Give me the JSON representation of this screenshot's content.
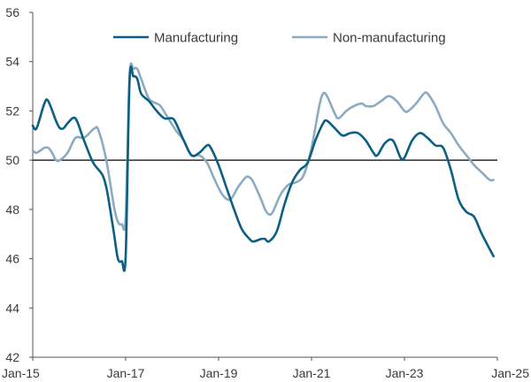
{
  "chart_data": {
    "type": "line",
    "title": "",
    "xlabel": "",
    "ylabel": "",
    "x_ticks": [
      "Jan-15",
      "Jan-17",
      "Jan-19",
      "Jan-21",
      "Jan-23",
      "Jan-25"
    ],
    "y_ticks": [
      42,
      44,
      46,
      48,
      50,
      52,
      54,
      56
    ],
    "ylim": [
      42,
      56
    ],
    "xlim": [
      "2015-01",
      "2025-01"
    ],
    "reference_line": 50,
    "grid": false,
    "legend_position": "top",
    "series": [
      {
        "name": "Manufacturing",
        "color": "#0b5f83",
        "points": [
          [
            "2015-01",
            51.4
          ],
          [
            "2015-02",
            51.3
          ],
          [
            "2015-04",
            52.3
          ],
          [
            "2015-05",
            52.4
          ],
          [
            "2015-07",
            51.6
          ],
          [
            "2015-08",
            51.3
          ],
          [
            "2015-09",
            51.3
          ],
          [
            "2015-10",
            51.5
          ],
          [
            "2015-12",
            51.7
          ],
          [
            "2016-02",
            50.9
          ],
          [
            "2016-04",
            50.1
          ],
          [
            "2016-05",
            49.8
          ],
          [
            "2016-07",
            49.4
          ],
          [
            "2016-08",
            48.9
          ],
          [
            "2016-09",
            48.0
          ],
          [
            "2016-10",
            47.0
          ],
          [
            "2016-11",
            46.0
          ],
          [
            "2016-12",
            45.9
          ],
          [
            "2017-01",
            46.1
          ],
          [
            "2017-02",
            53.2
          ],
          [
            "2017-03",
            53.4
          ],
          [
            "2017-04",
            53.3
          ],
          [
            "2017-05",
            52.7
          ],
          [
            "2017-07",
            52.4
          ],
          [
            "2017-09",
            52.0
          ],
          [
            "2017-11",
            51.7
          ],
          [
            "2018-01",
            51.7
          ],
          [
            "2018-02",
            51.5
          ],
          [
            "2018-04",
            50.8
          ],
          [
            "2018-06",
            50.2
          ],
          [
            "2018-08",
            50.3
          ],
          [
            "2018-10",
            50.6
          ],
          [
            "2018-11",
            50.5
          ],
          [
            "2019-01",
            49.8
          ],
          [
            "2019-03",
            48.9
          ],
          [
            "2019-05",
            48.0
          ],
          [
            "2019-07",
            47.2
          ],
          [
            "2019-09",
            46.8
          ],
          [
            "2019-10",
            46.7
          ],
          [
            "2019-12",
            46.8
          ],
          [
            "2020-01",
            46.8
          ],
          [
            "2020-02",
            46.7
          ],
          [
            "2020-04",
            47.1
          ],
          [
            "2020-06",
            48.2
          ],
          [
            "2020-08",
            49.1
          ],
          [
            "2020-10",
            49.6
          ],
          [
            "2020-12",
            49.9
          ],
          [
            "2021-02",
            50.8
          ],
          [
            "2021-04",
            51.5
          ],
          [
            "2021-05",
            51.6
          ],
          [
            "2021-07",
            51.3
          ],
          [
            "2021-09",
            51.0
          ],
          [
            "2021-11",
            51.1
          ],
          [
            "2022-01",
            51.1
          ],
          [
            "2022-03",
            50.8
          ],
          [
            "2022-05",
            50.3
          ],
          [
            "2022-06",
            50.2
          ],
          [
            "2022-08",
            50.7
          ],
          [
            "2022-10",
            50.8
          ],
          [
            "2022-12",
            50.1
          ],
          [
            "2023-01",
            50.1
          ],
          [
            "2023-03",
            50.8
          ],
          [
            "2023-05",
            51.1
          ],
          [
            "2023-07",
            50.9
          ],
          [
            "2023-09",
            50.6
          ],
          [
            "2023-11",
            50.5
          ],
          [
            "2024-01",
            49.6
          ],
          [
            "2024-03",
            48.4
          ],
          [
            "2024-05",
            47.9
          ],
          [
            "2024-07",
            47.7
          ],
          [
            "2024-09",
            47.0
          ],
          [
            "2024-12",
            46.1
          ]
        ]
      },
      {
        "name": "Non-manufacturing",
        "color": "#8cabc0",
        "points": [
          [
            "2015-01",
            50.4
          ],
          [
            "2015-02",
            50.3
          ],
          [
            "2015-04",
            50.5
          ],
          [
            "2015-05",
            50.5
          ],
          [
            "2015-06",
            50.3
          ],
          [
            "2015-07",
            50.0
          ],
          [
            "2015-08",
            50.0
          ],
          [
            "2015-10",
            50.3
          ],
          [
            "2015-12",
            50.9
          ],
          [
            "2016-02",
            50.9
          ],
          [
            "2016-03",
            51.0
          ],
          [
            "2016-05",
            51.3
          ],
          [
            "2016-06",
            51.2
          ],
          [
            "2016-08",
            50.0
          ],
          [
            "2016-10",
            48.1
          ],
          [
            "2016-11",
            47.5
          ],
          [
            "2016-12",
            47.4
          ],
          [
            "2017-01",
            47.7
          ],
          [
            "2017-02",
            53.4
          ],
          [
            "2017-03",
            53.7
          ],
          [
            "2017-04",
            53.7
          ],
          [
            "2017-05",
            53.3
          ],
          [
            "2017-07",
            52.5
          ],
          [
            "2017-09",
            52.3
          ],
          [
            "2017-10",
            52.2
          ],
          [
            "2017-12",
            51.7
          ],
          [
            "2018-02",
            51.2
          ],
          [
            "2018-04",
            50.8
          ],
          [
            "2018-06",
            50.2
          ],
          [
            "2018-08",
            50.2
          ],
          [
            "2018-10",
            49.9
          ],
          [
            "2018-12",
            49.2
          ],
          [
            "2019-02",
            48.6
          ],
          [
            "2019-04",
            48.4
          ],
          [
            "2019-06",
            48.9
          ],
          [
            "2019-08",
            49.3
          ],
          [
            "2019-09",
            49.3
          ],
          [
            "2019-10",
            49.1
          ],
          [
            "2019-12",
            48.4
          ],
          [
            "2020-01",
            48.0
          ],
          [
            "2020-02",
            47.8
          ],
          [
            "2020-03",
            47.9
          ],
          [
            "2020-05",
            48.6
          ],
          [
            "2020-07",
            49.0
          ],
          [
            "2020-09",
            49.1
          ],
          [
            "2020-11",
            49.4
          ],
          [
            "2021-01",
            50.5
          ],
          [
            "2021-03",
            52.2
          ],
          [
            "2021-04",
            52.7
          ],
          [
            "2021-05",
            52.6
          ],
          [
            "2021-07",
            51.9
          ],
          [
            "2021-08",
            51.7
          ],
          [
            "2021-10",
            52.0
          ],
          [
            "2021-12",
            52.2
          ],
          [
            "2022-02",
            52.3
          ],
          [
            "2022-03",
            52.2
          ],
          [
            "2022-05",
            52.2
          ],
          [
            "2022-07",
            52.4
          ],
          [
            "2022-09",
            52.6
          ],
          [
            "2022-11",
            52.4
          ],
          [
            "2023-01",
            52.0
          ],
          [
            "2023-02",
            52.0
          ],
          [
            "2023-04",
            52.3
          ],
          [
            "2023-06",
            52.7
          ],
          [
            "2023-07",
            52.7
          ],
          [
            "2023-09",
            52.2
          ],
          [
            "2023-11",
            51.5
          ],
          [
            "2024-01",
            51.1
          ],
          [
            "2024-03",
            50.6
          ],
          [
            "2024-05",
            50.2
          ],
          [
            "2024-07",
            49.8
          ],
          [
            "2024-09",
            49.5
          ],
          [
            "2024-11",
            49.2
          ],
          [
            "2024-12",
            49.2
          ]
        ]
      }
    ]
  }
}
